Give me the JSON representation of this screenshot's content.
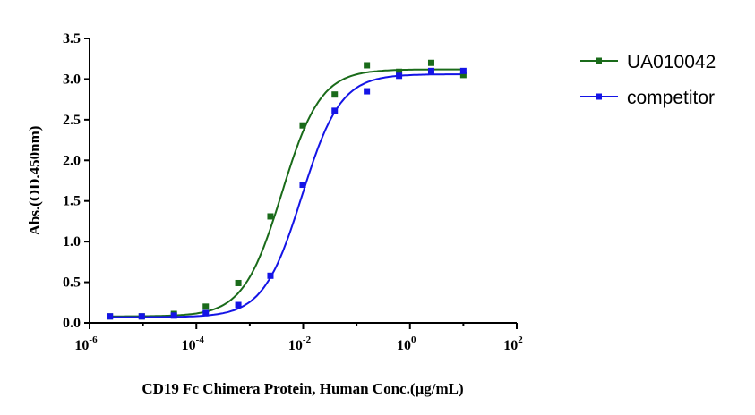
{
  "chart_data": {
    "type": "scatter",
    "title": "",
    "xlabel": "CD19 Fc Chimera Protein, Human Conc.(µg/mL)",
    "ylabel": "Abs.(OD.450nm)",
    "xscale": "log",
    "xlim": [
      1e-06,
      100
    ],
    "ylim": [
      0,
      3.5
    ],
    "x_ticks": [
      {
        "base": "10",
        "exp": "-6"
      },
      {
        "base": "10",
        "exp": "-4"
      },
      {
        "base": "10",
        "exp": "-2"
      },
      {
        "base": "10",
        "exp": "0"
      },
      {
        "base": "10",
        "exp": "2"
      }
    ],
    "y_ticks": [
      "0.0",
      "0.5",
      "1.0",
      "1.5",
      "2.0",
      "2.5",
      "3.0",
      "3.5"
    ],
    "legend_position": "top-right",
    "x": [
      2.4e-06,
      9.5e-06,
      3.8e-05,
      0.00015,
      0.00061,
      0.00244,
      0.0098,
      0.039,
      0.156,
      0.625,
      2.5,
      10
    ],
    "series": [
      {
        "name": "UA010042",
        "color": "#1a6b1a",
        "values": [
          0.08,
          0.08,
          0.11,
          0.2,
          0.49,
          1.31,
          2.43,
          2.81,
          3.17,
          3.09,
          3.2,
          3.05
        ],
        "fit": {
          "model": "4PL",
          "bottom": 0.08,
          "top": 3.12,
          "ec50": 0.004,
          "hill": 1.2
        }
      },
      {
        "name": "competitor",
        "color": "#1414e6",
        "values": [
          0.08,
          0.08,
          0.09,
          0.12,
          0.22,
          0.58,
          1.7,
          2.61,
          2.85,
          3.04,
          3.1,
          3.1
        ],
        "fit": {
          "model": "4PL",
          "bottom": 0.07,
          "top": 3.06,
          "ec50": 0.0095,
          "hill": 1.2
        }
      }
    ]
  }
}
